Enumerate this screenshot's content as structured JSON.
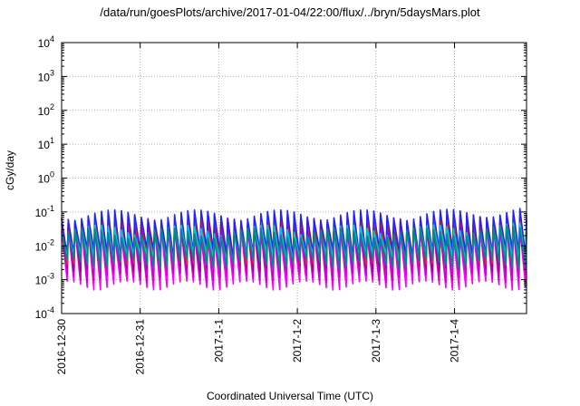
{
  "chart_data": {
    "type": "line",
    "title": "/data/run/goesPlots/archive/2017-01-04/22:00/flux/../bryn/5daysMars.plot",
    "ylabel": "cGy/day",
    "xlabel": "Coordinated Universal Time (UTC)",
    "yscale": "log",
    "ylim": [
      0.0001,
      10000
    ],
    "y_ticks": [
      {
        "exp": "-4"
      },
      {
        "exp": "-3"
      },
      {
        "exp": "-2"
      },
      {
        "exp": "-1"
      },
      {
        "exp": "0"
      },
      {
        "exp": "1"
      },
      {
        "exp": "2"
      },
      {
        "exp": "3"
      },
      {
        "exp": "4"
      }
    ],
    "xlim": [
      "2016-12-30",
      "2017-01-04 22:00"
    ],
    "x_ticks": [
      "2016-12-30",
      "2016-12-31",
      "2017-1-1",
      "2017-1-2",
      "2017-1-3",
      "2017-1-4"
    ],
    "grid": true,
    "sawtooth_cycles": 70,
    "series": [
      {
        "color": "#ff00ff",
        "peak": 0.028,
        "trough": 0.0007
      },
      {
        "color": "#cc00cc",
        "peak": 0.035,
        "trough": 0.0012
      },
      {
        "color": "#990099",
        "peak": 0.05,
        "trough": 0.0025
      },
      {
        "color": "#ff2020",
        "peak": 0.06,
        "trough": 0.004
      },
      {
        "color": "#2222ff",
        "peak": 0.085,
        "trough": 0.006
      },
      {
        "color": "#00c8c8",
        "peak": 0.03,
        "trough": 0.0045
      },
      {
        "color": "#008888",
        "peak": 0.025,
        "trough": 0.003
      }
    ]
  }
}
